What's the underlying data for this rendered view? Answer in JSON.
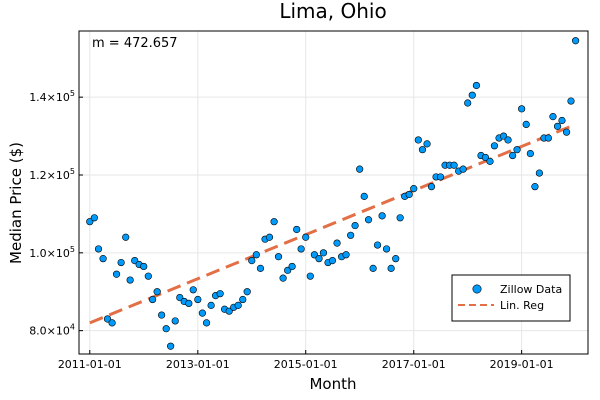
{
  "chart_data": {
    "type": "scatter",
    "title": "Lima, Ohio",
    "xlabel": "Month",
    "ylabel": "Median Price ($)",
    "annotation": "m = 472.657",
    "x_axis": {
      "type": "date",
      "range": [
        "2010-10-20",
        "2020-03-25"
      ],
      "ticks": [
        "2011-01-01",
        "2013-01-01",
        "2015-01-01",
        "2017-01-01",
        "2019-01-01"
      ]
    },
    "y_axis": {
      "range": [
        74000,
        157000
      ],
      "ticks": [
        80000,
        100000,
        120000,
        140000
      ],
      "tick_labels": [
        {
          "mantissa": "8.0×10",
          "exp": "4"
        },
        {
          "mantissa": "1.0×10",
          "exp": "5"
        },
        {
          "mantissa": "1.2×10",
          "exp": "5"
        },
        {
          "mantissa": "1.4×10",
          "exp": "5"
        }
      ]
    },
    "grid": true,
    "legend_position": "bottom-right",
    "series": [
      {
        "name": "Zillow Data",
        "style": "markers",
        "color": "#009AFA",
        "points": [
          [
            "2011-01-01",
            108000
          ],
          [
            "2011-02-01",
            109000
          ],
          [
            "2011-03-01",
            101000
          ],
          [
            "2011-04-01",
            98500
          ],
          [
            "2011-05-01",
            83000
          ],
          [
            "2011-06-01",
            82000
          ],
          [
            "2011-07-01",
            94500
          ],
          [
            "2011-08-01",
            97500
          ],
          [
            "2011-09-01",
            104000
          ],
          [
            "2011-10-01",
            93000
          ],
          [
            "2011-11-01",
            98000
          ],
          [
            "2011-12-01",
            97000
          ],
          [
            "2012-01-01",
            96500
          ],
          [
            "2012-02-01",
            94000
          ],
          [
            "2012-03-01",
            88000
          ],
          [
            "2012-04-01",
            90000
          ],
          [
            "2012-05-01",
            84000
          ],
          [
            "2012-06-01",
            80500
          ],
          [
            "2012-07-01",
            76000
          ],
          [
            "2012-08-01",
            82500
          ],
          [
            "2012-09-01",
            88500
          ],
          [
            "2012-10-01",
            87500
          ],
          [
            "2012-11-01",
            87000
          ],
          [
            "2012-12-01",
            90500
          ],
          [
            "2013-01-01",
            88000
          ],
          [
            "2013-02-01",
            84500
          ],
          [
            "2013-03-01",
            82000
          ],
          [
            "2013-04-01",
            86500
          ],
          [
            "2013-05-01",
            89000
          ],
          [
            "2013-06-01",
            89500
          ],
          [
            "2013-07-01",
            85500
          ],
          [
            "2013-08-01",
            85000
          ],
          [
            "2013-09-01",
            86000
          ],
          [
            "2013-10-01",
            86500
          ],
          [
            "2013-11-01",
            88000
          ],
          [
            "2013-12-01",
            90000
          ],
          [
            "2014-01-01",
            98000
          ],
          [
            "2014-02-01",
            99500
          ],
          [
            "2014-03-01",
            96000
          ],
          [
            "2014-04-01",
            103500
          ],
          [
            "2014-05-01",
            104000
          ],
          [
            "2014-06-01",
            108000
          ],
          [
            "2014-07-01",
            99000
          ],
          [
            "2014-08-01",
            93500
          ],
          [
            "2014-09-01",
            95500
          ],
          [
            "2014-10-01",
            96500
          ],
          [
            "2014-11-01",
            106000
          ],
          [
            "2014-12-01",
            101000
          ],
          [
            "2015-01-01",
            104000
          ],
          [
            "2015-02-01",
            94000
          ],
          [
            "2015-03-01",
            99500
          ],
          [
            "2015-04-01",
            98500
          ],
          [
            "2015-05-01",
            100000
          ],
          [
            "2015-06-01",
            97500
          ],
          [
            "2015-07-01",
            98000
          ],
          [
            "2015-08-01",
            102500
          ],
          [
            "2015-09-01",
            99000
          ],
          [
            "2015-10-01",
            99500
          ],
          [
            "2015-11-01",
            104500
          ],
          [
            "2015-12-01",
            107000
          ],
          [
            "2016-01-01",
            121500
          ],
          [
            "2016-02-01",
            114500
          ],
          [
            "2016-03-01",
            108500
          ],
          [
            "2016-04-01",
            96000
          ],
          [
            "2016-05-01",
            102000
          ],
          [
            "2016-06-01",
            109500
          ],
          [
            "2016-07-01",
            101000
          ],
          [
            "2016-08-01",
            96000
          ],
          [
            "2016-09-01",
            98500
          ],
          [
            "2016-10-01",
            109000
          ],
          [
            "2016-11-01",
            114500
          ],
          [
            "2016-12-01",
            115000
          ],
          [
            "2017-01-01",
            116500
          ],
          [
            "2017-02-01",
            129000
          ],
          [
            "2017-03-01",
            126500
          ],
          [
            "2017-04-01",
            128000
          ],
          [
            "2017-05-01",
            117000
          ],
          [
            "2017-06-01",
            119500
          ],
          [
            "2017-07-01",
            119500
          ],
          [
            "2017-08-01",
            122500
          ],
          [
            "2017-09-01",
            122500
          ],
          [
            "2017-10-01",
            122500
          ],
          [
            "2017-11-01",
            121000
          ],
          [
            "2017-12-01",
            121500
          ],
          [
            "2018-01-01",
            138500
          ],
          [
            "2018-02-01",
            140500
          ],
          [
            "2018-03-01",
            143000
          ],
          [
            "2018-04-01",
            125000
          ],
          [
            "2018-05-01",
            124500
          ],
          [
            "2018-06-01",
            123500
          ],
          [
            "2018-07-01",
            127500
          ],
          [
            "2018-08-01",
            129500
          ],
          [
            "2018-09-01",
            130000
          ],
          [
            "2018-10-01",
            129000
          ],
          [
            "2018-11-01",
            125000
          ],
          [
            "2018-12-01",
            126500
          ],
          [
            "2019-01-01",
            137000
          ],
          [
            "2019-02-01",
            133000
          ],
          [
            "2019-03-01",
            125500
          ],
          [
            "2019-04-01",
            117000
          ],
          [
            "2019-05-01",
            120500
          ],
          [
            "2019-06-01",
            129500
          ],
          [
            "2019-07-01",
            129500
          ],
          [
            "2019-08-01",
            135000
          ],
          [
            "2019-09-01",
            132500
          ],
          [
            "2019-10-01",
            134000
          ],
          [
            "2019-11-01",
            131000
          ],
          [
            "2019-12-01",
            139000
          ],
          [
            "2020-01-01",
            154500
          ]
        ]
      },
      {
        "name": "Lin. Reg",
        "style": "dashed-line",
        "color": "#E26F46",
        "points": [
          [
            "2011-01-01",
            82000
          ],
          [
            "2020-01-01",
            133000
          ]
        ]
      }
    ]
  }
}
